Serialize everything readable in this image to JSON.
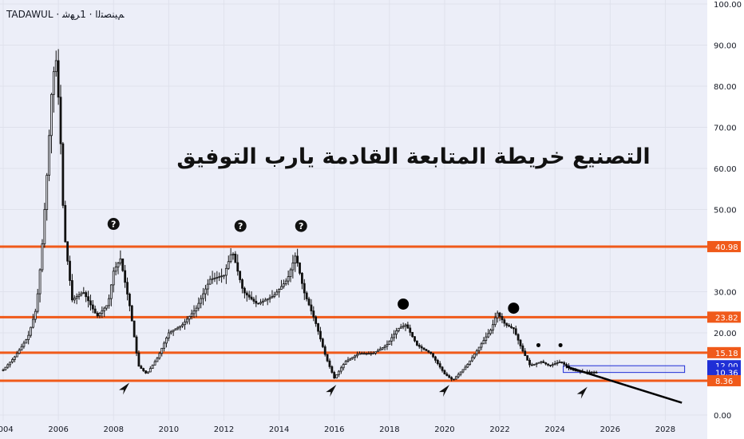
{
  "symbol_label": "TADAWUL · ﻢﻴﻨﺼﺘﻟﺍ · 1ﺮﻬﺷ",
  "colors": {
    "background": "#eceef8",
    "axis_bg": "#ffffff",
    "grid": "#dfe1ec",
    "candle": "#111111",
    "level": "#f05a1a",
    "box_line": "#1f2fd6",
    "trend": "#000000"
  },
  "chart_data": {
    "type": "candlestick",
    "title": "التصنيع خريطة المتابعة القادمة يارب التوفيق",
    "xlabel": "",
    "ylabel": "",
    "xlim": [
      2004.0,
      2029.0
    ],
    "ylim": [
      0,
      100
    ],
    "grid": true,
    "x_ticks": [
      "2004",
      "2006",
      "2008",
      "2010",
      "2012",
      "2014",
      "2016",
      "2018",
      "2020",
      "2022",
      "2024",
      "2026",
      "2028"
    ],
    "y_ticks": [
      "100.00",
      "90.00",
      "80.00",
      "70.00",
      "60.00",
      "50.00",
      "30.00",
      "20.00",
      "0.00"
    ],
    "levels": [
      {
        "label": "40.98",
        "value": 40.98,
        "color": "#f05a1a"
      },
      {
        "label": "23.82",
        "value": 23.82,
        "color": "#f05a1a"
      },
      {
        "label": "15.18",
        "value": 15.18,
        "color": "#f05a1a"
      },
      {
        "label": "12.00",
        "value": 12.0,
        "color": "#1f2fd6"
      },
      {
        "label": "10.36",
        "value": 10.36,
        "color": "#1f2fd6"
      },
      {
        "label": "8.36",
        "value": 8.36,
        "color": "#f05a1a"
      }
    ],
    "price_path": [
      {
        "t": 2004.0,
        "v": 11
      },
      {
        "t": 2004.4,
        "v": 14
      },
      {
        "t": 2004.9,
        "v": 19
      },
      {
        "t": 2005.2,
        "v": 26
      },
      {
        "t": 2005.4,
        "v": 40
      },
      {
        "t": 2005.6,
        "v": 60
      },
      {
        "t": 2005.75,
        "v": 78
      },
      {
        "t": 2005.9,
        "v": 88
      },
      {
        "t": 2006.05,
        "v": 72
      },
      {
        "t": 2006.2,
        "v": 45
      },
      {
        "t": 2006.5,
        "v": 28
      },
      {
        "t": 2006.9,
        "v": 30
      },
      {
        "t": 2007.4,
        "v": 24
      },
      {
        "t": 2007.8,
        "v": 27
      },
      {
        "t": 2008.0,
        "v": 35
      },
      {
        "t": 2008.25,
        "v": 38
      },
      {
        "t": 2008.6,
        "v": 26
      },
      {
        "t": 2008.9,
        "v": 12
      },
      {
        "t": 2009.2,
        "v": 10
      },
      {
        "t": 2009.6,
        "v": 14
      },
      {
        "t": 2010.0,
        "v": 20
      },
      {
        "t": 2010.5,
        "v": 22
      },
      {
        "t": 2011.0,
        "v": 26
      },
      {
        "t": 2011.5,
        "v": 33
      },
      {
        "t": 2012.0,
        "v": 34
      },
      {
        "t": 2012.3,
        "v": 40
      },
      {
        "t": 2012.7,
        "v": 30
      },
      {
        "t": 2013.2,
        "v": 27
      },
      {
        "t": 2013.8,
        "v": 29
      },
      {
        "t": 2014.3,
        "v": 33
      },
      {
        "t": 2014.6,
        "v": 39
      },
      {
        "t": 2014.9,
        "v": 30
      },
      {
        "t": 2015.3,
        "v": 23
      },
      {
        "t": 2015.7,
        "v": 14
      },
      {
        "t": 2016.0,
        "v": 9
      },
      {
        "t": 2016.4,
        "v": 13
      },
      {
        "t": 2016.9,
        "v": 15
      },
      {
        "t": 2017.4,
        "v": 15
      },
      {
        "t": 2017.9,
        "v": 17
      },
      {
        "t": 2018.3,
        "v": 21
      },
      {
        "t": 2018.6,
        "v": 22
      },
      {
        "t": 2019.0,
        "v": 17
      },
      {
        "t": 2019.5,
        "v": 15
      },
      {
        "t": 2020.0,
        "v": 10
      },
      {
        "t": 2020.3,
        "v": 8.5
      },
      {
        "t": 2020.8,
        "v": 12
      },
      {
        "t": 2021.3,
        "v": 17
      },
      {
        "t": 2021.7,
        "v": 21
      },
      {
        "t": 2021.9,
        "v": 25
      },
      {
        "t": 2022.2,
        "v": 22
      },
      {
        "t": 2022.5,
        "v": 21
      },
      {
        "t": 2022.8,
        "v": 16
      },
      {
        "t": 2023.1,
        "v": 12
      },
      {
        "t": 2023.5,
        "v": 13
      },
      {
        "t": 2023.8,
        "v": 12
      },
      {
        "t": 2024.2,
        "v": 13
      },
      {
        "t": 2024.6,
        "v": 11
      },
      {
        "t": 2025.0,
        "v": 10.5
      },
      {
        "t": 2025.5,
        "v": 10.4
      }
    ],
    "trendline": [
      {
        "t": 2024.4,
        "v": 11.8
      },
      {
        "t": 2028.6,
        "v": 3.0
      }
    ],
    "box": {
      "t0": 2024.3,
      "t1": 2028.7,
      "top": 12.0,
      "bottom": 10.36
    },
    "markers": {
      "question": [
        {
          "t": 2008.0,
          "v": 46.5
        },
        {
          "t": 2012.6,
          "v": 46.0
        },
        {
          "t": 2014.8,
          "v": 46.0
        }
      ],
      "dots_large": [
        {
          "t": 2018.5,
          "v": 27.0
        },
        {
          "t": 2022.5,
          "v": 26.0
        }
      ],
      "dots_small": [
        {
          "t": 2023.4,
          "v": 17.0
        },
        {
          "t": 2024.2,
          "v": 17.0
        }
      ],
      "arrows": [
        {
          "t": 2008.4,
          "v": 6.5
        },
        {
          "t": 2015.9,
          "v": 6.0
        },
        {
          "t": 2020.0,
          "v": 6.0
        },
        {
          "t": 2025.0,
          "v": 5.5
        }
      ]
    }
  }
}
